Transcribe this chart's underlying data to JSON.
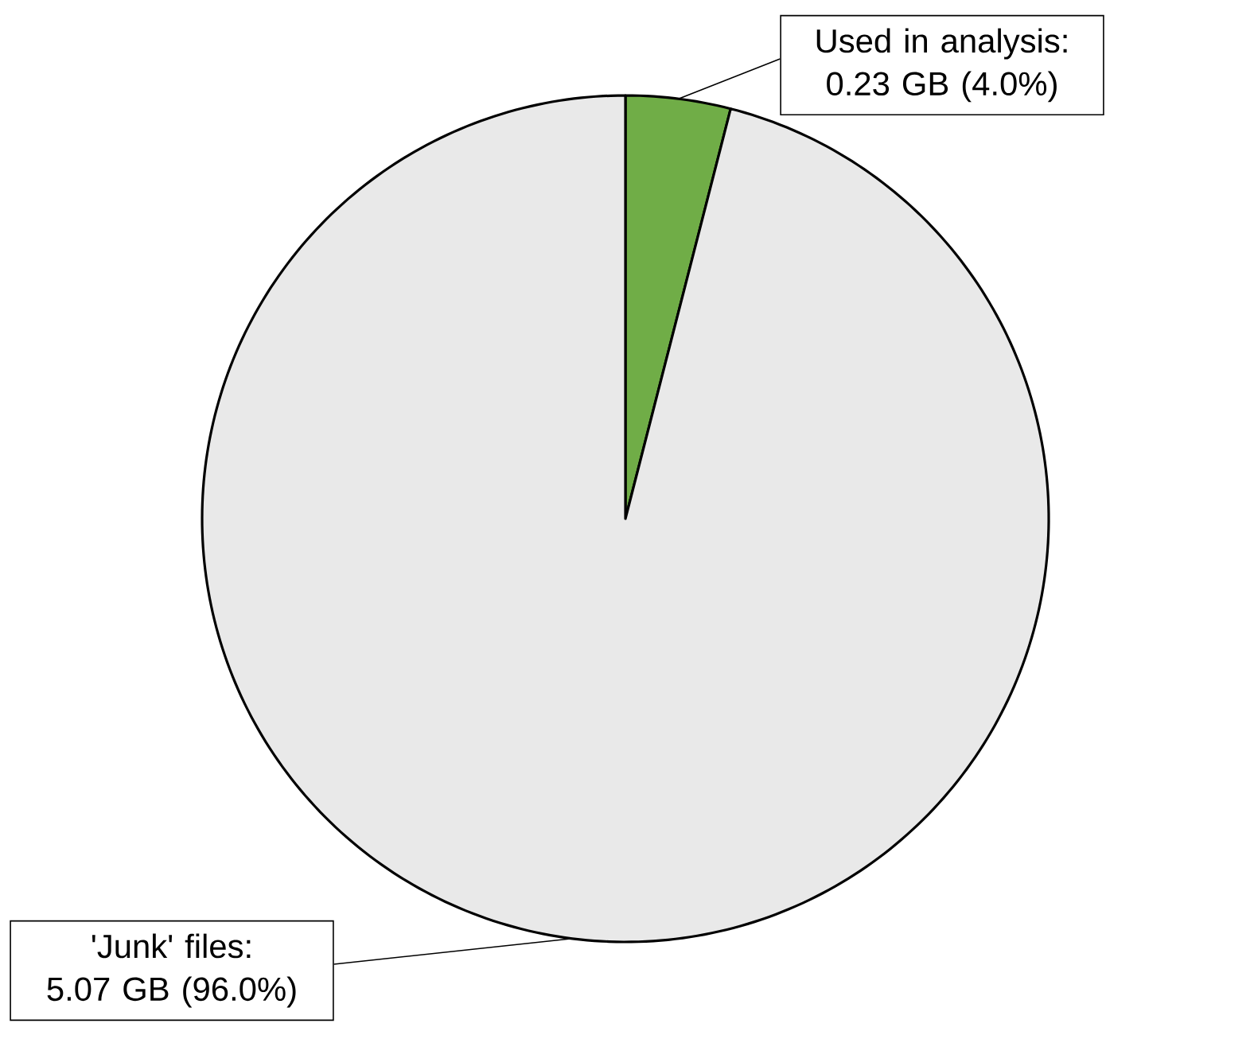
{
  "chart_data": {
    "type": "pie",
    "categories": [
      "Used in analysis: 0.23 GB (4.0%)",
      "'Junk' files: 5.07 GB (96.0%)"
    ],
    "values": [
      4.0,
      96.0
    ],
    "colors": [
      "#70ad47",
      "#e9e9e9"
    ]
  }
}
